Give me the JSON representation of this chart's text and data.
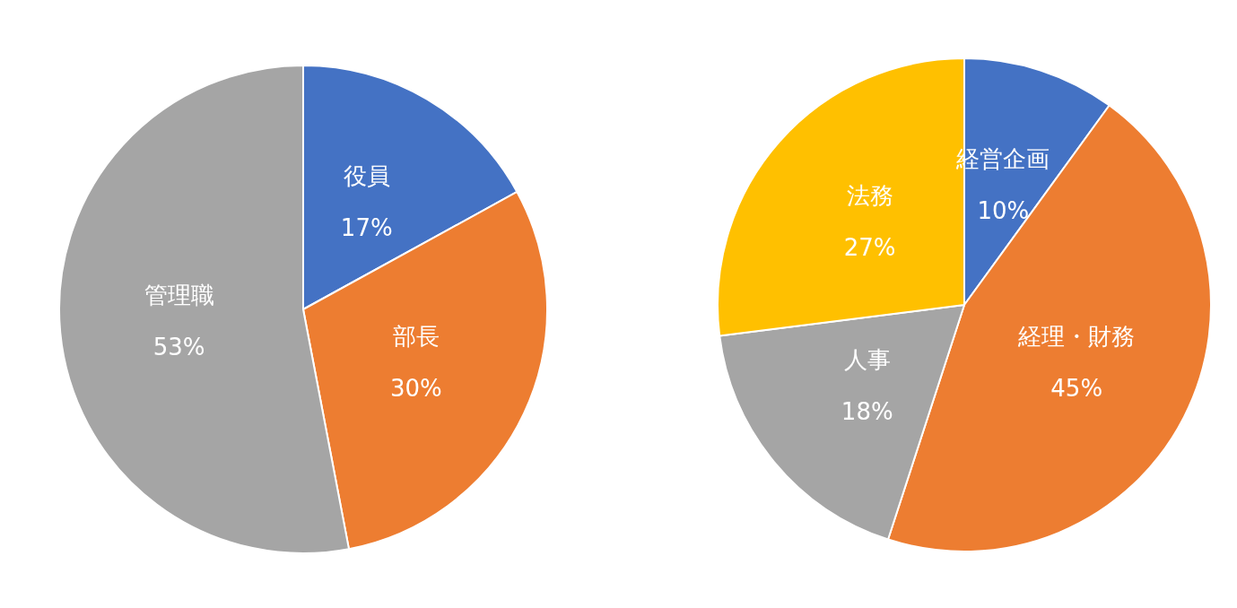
{
  "chart_data": [
    {
      "type": "pie",
      "categories": [
        "役員",
        "部長",
        "管理職"
      ],
      "values": [
        17,
        30,
        53
      ],
      "value_labels": [
        "17%",
        "30%",
        "53%"
      ],
      "colors": [
        "#4472c4",
        "#ed7d31",
        "#a5a5a5"
      ]
    },
    {
      "type": "pie",
      "categories": [
        "経営企画",
        "経理・財務",
        "人事",
        "法務"
      ],
      "values": [
        10,
        45,
        18,
        27
      ],
      "value_labels": [
        "10%",
        "45%",
        "18%",
        "27%"
      ],
      "colors": [
        "#4472c4",
        "#ed7d31",
        "#a5a5a5",
        "#ffc000"
      ]
    }
  ]
}
